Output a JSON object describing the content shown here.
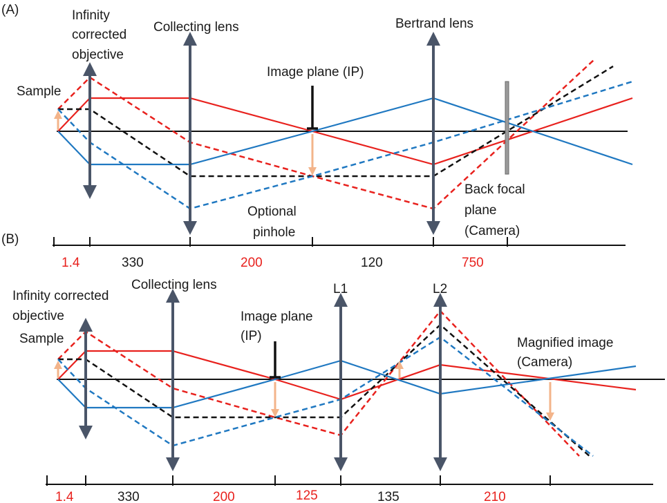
{
  "colors": {
    "red": "#e8211d",
    "blue": "#1f78c1",
    "black": "#111111",
    "lens": "#4a5568",
    "image_arrow": "#f3b48a",
    "bfp": "#777777"
  },
  "panelA": {
    "panel_label": "(A)",
    "objective_label": [
      "Infinity",
      "corrected",
      "objective"
    ],
    "sample_label": "Sample",
    "collecting_label": "Collecting lens",
    "image_plane_label": "Image plane (IP)",
    "bertrand_label": "Bertrand lens",
    "pinhole_label": [
      "Optional",
      "pinhole"
    ],
    "bfp_label": [
      "Back focal",
      "plane",
      "(Camera)"
    ],
    "distances": [
      {
        "text": "1.4",
        "color": "red"
      },
      {
        "text": "330",
        "color": "black"
      },
      {
        "text": "200",
        "color": "red"
      },
      {
        "text": "120",
        "color": "black"
      },
      {
        "text": "750",
        "color": "red"
      }
    ]
  },
  "panelB": {
    "panel_label": "(B)",
    "objective_label": [
      "Infinity corrected",
      "objective"
    ],
    "sample_label": "Sample",
    "collecting_label": "Collecting lens",
    "image_plane_label": [
      "Image plane",
      "(IP)"
    ],
    "l1_label": "L1",
    "l2_label": "L2",
    "magnified_label": [
      "Magnified image",
      "(Camera)"
    ],
    "distances": [
      {
        "text": "1.4",
        "color": "red"
      },
      {
        "text": "330",
        "color": "black"
      },
      {
        "text": "200",
        "color": "red"
      },
      {
        "text": "125",
        "color": "red"
      },
      {
        "text": "135",
        "color": "black"
      },
      {
        "text": "210",
        "color": "red"
      }
    ]
  }
}
